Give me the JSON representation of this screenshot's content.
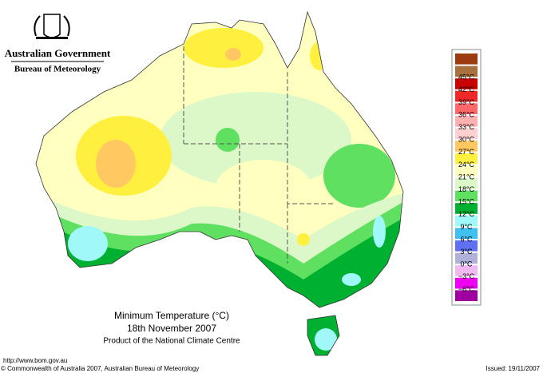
{
  "header": {
    "government": "Australian Government",
    "agency": "Bureau of Meteorology"
  },
  "map": {
    "title": "Minimum Temperature (°C)",
    "date": "18th November 2007",
    "product": "Product of the National Climate Centre"
  },
  "legend": {
    "labels": [
      "45°C",
      "42°C",
      "39°C",
      "36°C",
      "33°C",
      "30°C",
      "27°C",
      "24°C",
      "21°C",
      "18°C",
      "15°C",
      "12°C",
      "9°C",
      "6°C",
      "3°C",
      "0°C",
      "−3°C",
      "−6°C"
    ],
    "colors": [
      "#9c3a10",
      "#a8703c",
      "#c80000",
      "#f02828",
      "#ff6868",
      "#ffb0b0",
      "#ffd0d0",
      "#ffc860",
      "#fff040",
      "#ffffc0",
      "#dcf8c8",
      "#60e060",
      "#00b030",
      "#a0f8f8",
      "#40c0f0",
      "#6070f0",
      "#b0b0d8",
      "#f0b8f0",
      "#f000f0",
      "#a000a0"
    ]
  },
  "footer": {
    "url": "http://www.bom.gov.au",
    "copyright": "© Commonwealth of Australia 2007, Australian Bureau of Meteorology",
    "issued": "Issued: 19/11/2007"
  }
}
